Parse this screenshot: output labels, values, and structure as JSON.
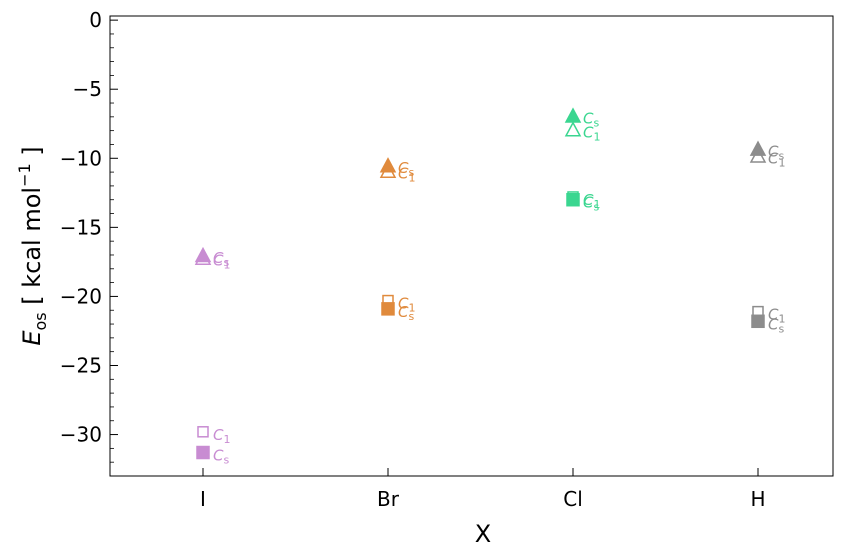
{
  "chart_data": {
    "type": "scatter",
    "xlabel": "X",
    "ylabel": {
      "symbol": "E",
      "subscript": "os",
      "unit_pre": " [ kcal mol",
      "unit_sup": "−1",
      "unit_post": " ]"
    },
    "categories": [
      "I",
      "Br",
      "Cl",
      "H"
    ],
    "ylim": [
      -33,
      0.3
    ],
    "yticks": [
      0,
      -5,
      -10,
      -15,
      -20,
      -25,
      -30
    ],
    "ytick_labels": [
      "0",
      "−5",
      "−10",
      "−15",
      "−20",
      "−25",
      "−30"
    ],
    "colors": {
      "I": "#c88cd2",
      "Br": "#e08a3c",
      "Cl": "#3ad690",
      "H": "#8c8c8c"
    },
    "series": [
      {
        "marker": "triangle",
        "points": [
          {
            "x": "I",
            "filled": true,
            "y": -17.0,
            "label": "C",
            "sub": "s"
          },
          {
            "x": "I",
            "filled": false,
            "y": -17.2,
            "label": "C",
            "sub": "1"
          },
          {
            "x": "Br",
            "filled": true,
            "y": -10.5,
            "label": "C",
            "sub": "s"
          },
          {
            "x": "Br",
            "filled": false,
            "y": -10.9,
            "label": "C",
            "sub": "1"
          },
          {
            "x": "Cl",
            "filled": true,
            "y": -6.9,
            "label": "C",
            "sub": "s"
          },
          {
            "x": "Cl",
            "filled": false,
            "y": -7.9,
            "label": "C",
            "sub": "1"
          },
          {
            "x": "H",
            "filled": true,
            "y": -9.3,
            "label": "C",
            "sub": "s"
          },
          {
            "x": "H",
            "filled": false,
            "y": -9.8,
            "label": "C",
            "sub": "1"
          }
        ]
      },
      {
        "marker": "square",
        "points": [
          {
            "x": "I",
            "filled": false,
            "y": -29.8,
            "label": "C",
            "sub": "1"
          },
          {
            "x": "I",
            "filled": true,
            "y": -31.3,
            "label": "C",
            "sub": "s"
          },
          {
            "x": "Br",
            "filled": false,
            "y": -20.3,
            "label": "C",
            "sub": "1"
          },
          {
            "x": "Br",
            "filled": true,
            "y": -20.9,
            "label": "C",
            "sub": "s"
          },
          {
            "x": "Cl",
            "filled": false,
            "y": -12.8,
            "label": "C",
            "sub": "1"
          },
          {
            "x": "Cl",
            "filled": true,
            "y": -13.0,
            "label": "C",
            "sub": "s"
          },
          {
            "x": "H",
            "filled": false,
            "y": -21.1,
            "label": "C",
            "sub": "1"
          },
          {
            "x": "H",
            "filled": true,
            "y": -21.8,
            "label": "C",
            "sub": "s"
          }
        ]
      }
    ]
  }
}
